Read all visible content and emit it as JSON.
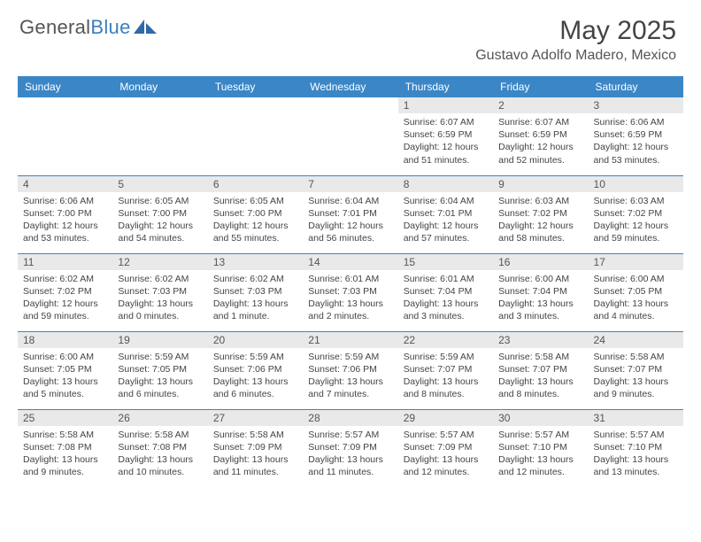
{
  "brand": {
    "part1": "General",
    "part2": "Blue"
  },
  "title": "May 2025",
  "location": "Gustavo Adolfo Madero, Mexico",
  "header_bg": "#3b86c6",
  "daynum_bg": "#e9e9e9",
  "weekdays": [
    "Sunday",
    "Monday",
    "Tuesday",
    "Wednesday",
    "Thursday",
    "Friday",
    "Saturday"
  ],
  "weeks": [
    [
      null,
      null,
      null,
      null,
      {
        "n": "1",
        "sr": "6:07 AM",
        "ss": "6:59 PM",
        "dl": "12 hours and 51 minutes."
      },
      {
        "n": "2",
        "sr": "6:07 AM",
        "ss": "6:59 PM",
        "dl": "12 hours and 52 minutes."
      },
      {
        "n": "3",
        "sr": "6:06 AM",
        "ss": "6:59 PM",
        "dl": "12 hours and 53 minutes."
      }
    ],
    [
      {
        "n": "4",
        "sr": "6:06 AM",
        "ss": "7:00 PM",
        "dl": "12 hours and 53 minutes."
      },
      {
        "n": "5",
        "sr": "6:05 AM",
        "ss": "7:00 PM",
        "dl": "12 hours and 54 minutes."
      },
      {
        "n": "6",
        "sr": "6:05 AM",
        "ss": "7:00 PM",
        "dl": "12 hours and 55 minutes."
      },
      {
        "n": "7",
        "sr": "6:04 AM",
        "ss": "7:01 PM",
        "dl": "12 hours and 56 minutes."
      },
      {
        "n": "8",
        "sr": "6:04 AM",
        "ss": "7:01 PM",
        "dl": "12 hours and 57 minutes."
      },
      {
        "n": "9",
        "sr": "6:03 AM",
        "ss": "7:02 PM",
        "dl": "12 hours and 58 minutes."
      },
      {
        "n": "10",
        "sr": "6:03 AM",
        "ss": "7:02 PM",
        "dl": "12 hours and 59 minutes."
      }
    ],
    [
      {
        "n": "11",
        "sr": "6:02 AM",
        "ss": "7:02 PM",
        "dl": "12 hours and 59 minutes."
      },
      {
        "n": "12",
        "sr": "6:02 AM",
        "ss": "7:03 PM",
        "dl": "13 hours and 0 minutes."
      },
      {
        "n": "13",
        "sr": "6:02 AM",
        "ss": "7:03 PM",
        "dl": "13 hours and 1 minute."
      },
      {
        "n": "14",
        "sr": "6:01 AM",
        "ss": "7:03 PM",
        "dl": "13 hours and 2 minutes."
      },
      {
        "n": "15",
        "sr": "6:01 AM",
        "ss": "7:04 PM",
        "dl": "13 hours and 3 minutes."
      },
      {
        "n": "16",
        "sr": "6:00 AM",
        "ss": "7:04 PM",
        "dl": "13 hours and 3 minutes."
      },
      {
        "n": "17",
        "sr": "6:00 AM",
        "ss": "7:05 PM",
        "dl": "13 hours and 4 minutes."
      }
    ],
    [
      {
        "n": "18",
        "sr": "6:00 AM",
        "ss": "7:05 PM",
        "dl": "13 hours and 5 minutes."
      },
      {
        "n": "19",
        "sr": "5:59 AM",
        "ss": "7:05 PM",
        "dl": "13 hours and 6 minutes."
      },
      {
        "n": "20",
        "sr": "5:59 AM",
        "ss": "7:06 PM",
        "dl": "13 hours and 6 minutes."
      },
      {
        "n": "21",
        "sr": "5:59 AM",
        "ss": "7:06 PM",
        "dl": "13 hours and 7 minutes."
      },
      {
        "n": "22",
        "sr": "5:59 AM",
        "ss": "7:07 PM",
        "dl": "13 hours and 8 minutes."
      },
      {
        "n": "23",
        "sr": "5:58 AM",
        "ss": "7:07 PM",
        "dl": "13 hours and 8 minutes."
      },
      {
        "n": "24",
        "sr": "5:58 AM",
        "ss": "7:07 PM",
        "dl": "13 hours and 9 minutes."
      }
    ],
    [
      {
        "n": "25",
        "sr": "5:58 AM",
        "ss": "7:08 PM",
        "dl": "13 hours and 9 minutes."
      },
      {
        "n": "26",
        "sr": "5:58 AM",
        "ss": "7:08 PM",
        "dl": "13 hours and 10 minutes."
      },
      {
        "n": "27",
        "sr": "5:58 AM",
        "ss": "7:09 PM",
        "dl": "13 hours and 11 minutes."
      },
      {
        "n": "28",
        "sr": "5:57 AM",
        "ss": "7:09 PM",
        "dl": "13 hours and 11 minutes."
      },
      {
        "n": "29",
        "sr": "5:57 AM",
        "ss": "7:09 PM",
        "dl": "13 hours and 12 minutes."
      },
      {
        "n": "30",
        "sr": "5:57 AM",
        "ss": "7:10 PM",
        "dl": "13 hours and 12 minutes."
      },
      {
        "n": "31",
        "sr": "5:57 AM",
        "ss": "7:10 PM",
        "dl": "13 hours and 13 minutes."
      }
    ]
  ],
  "labels": {
    "sunrise": "Sunrise:",
    "sunset": "Sunset:",
    "daylight": "Daylight:"
  }
}
